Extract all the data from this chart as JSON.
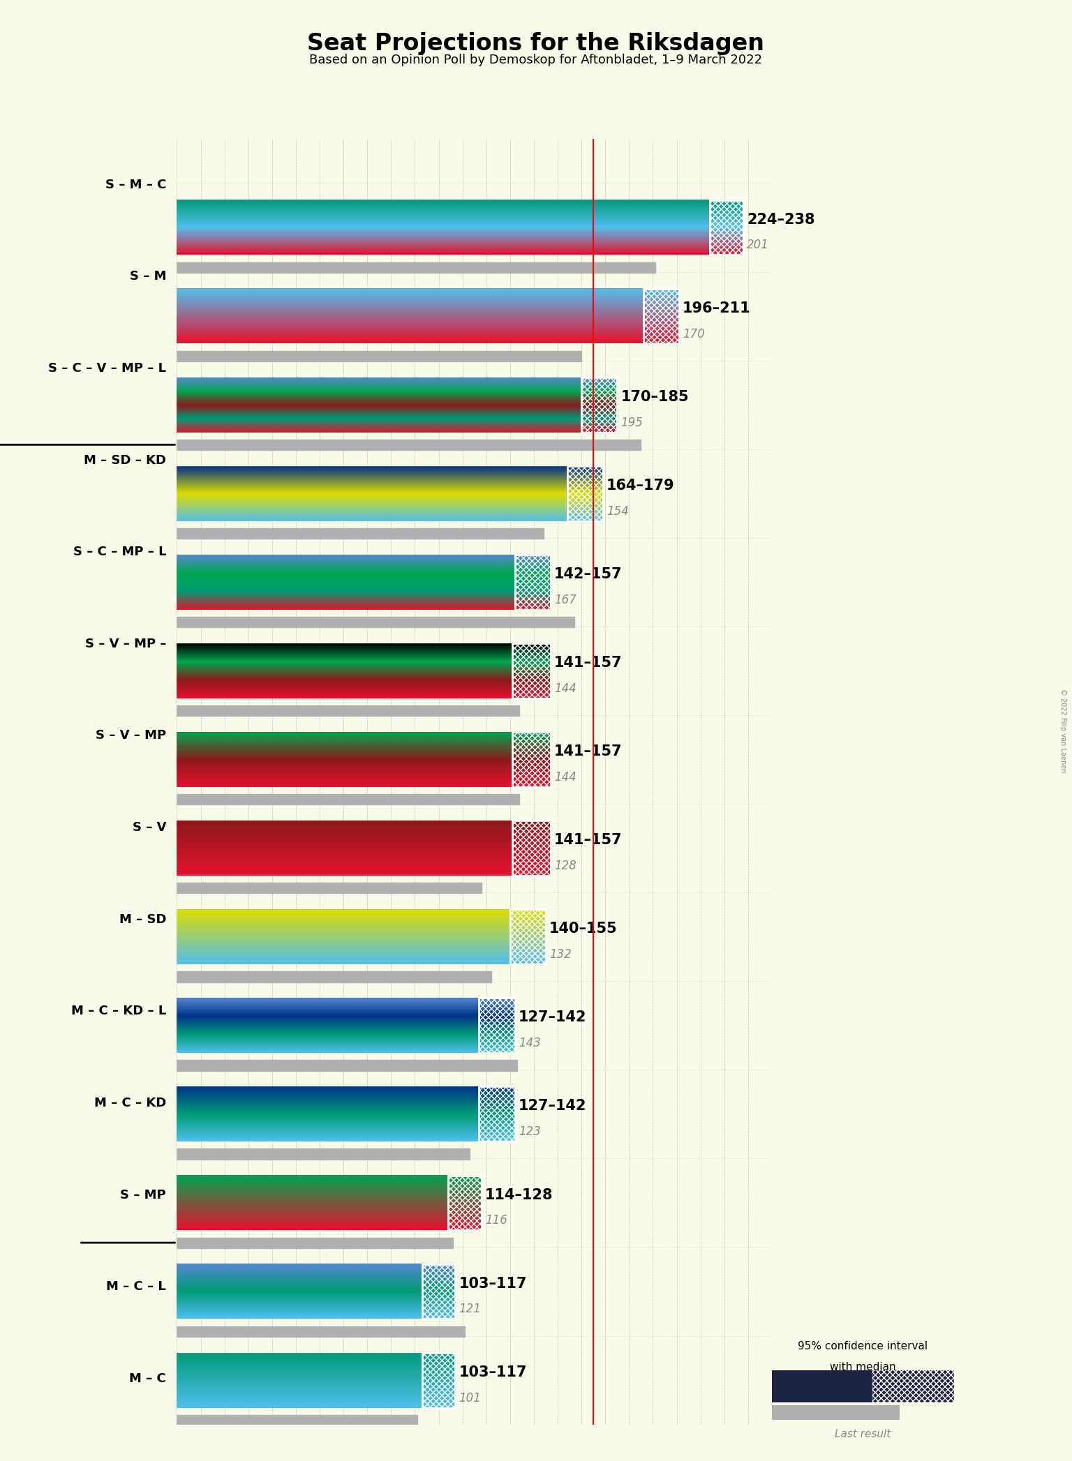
{
  "title": "Seat Projections for the Riksdagen",
  "subtitle": "Based on an Opinion Poll by Demoskop for Aftonbladet, 1–9 March 2022",
  "copyright": "© 2022 Filip van Laenen",
  "majority_line": 175,
  "background_color": "#FAFAE8",
  "coalitions": [
    {
      "label": "S – M – C",
      "underline": false,
      "range_low": 224,
      "range_high": 238,
      "last_result": 201,
      "colors": [
        "#E8112d",
        "#52BFEE",
        "#009B77"
      ]
    },
    {
      "label": "S – M",
      "underline": false,
      "range_low": 196,
      "range_high": 211,
      "last_result": 170,
      "colors": [
        "#E8112d",
        "#52BFEE"
      ]
    },
    {
      "label": "S – C – V – MP – L",
      "underline": true,
      "range_low": 170,
      "range_high": 185,
      "last_result": 195,
      "colors": [
        "#E8112d",
        "#009B77",
        "#8B1A1A",
        "#00A651",
        "#5588CC"
      ]
    },
    {
      "label": "M – SD – KD",
      "underline": false,
      "range_low": 164,
      "range_high": 179,
      "last_result": 154,
      "colors": [
        "#52BFEE",
        "#DDDD00",
        "#003388"
      ]
    },
    {
      "label": "S – C – MP – L",
      "underline": false,
      "range_low": 142,
      "range_high": 157,
      "last_result": 167,
      "colors": [
        "#E8112d",
        "#009B77",
        "#00A651",
        "#5588CC"
      ]
    },
    {
      "label": "S – V – MP –",
      "underline": false,
      "range_low": 141,
      "range_high": 157,
      "last_result": 144,
      "colors": [
        "#E8112d",
        "#8B1A1A",
        "#00A651",
        "#000000"
      ]
    },
    {
      "label": "S – V – MP",
      "underline": false,
      "range_low": 141,
      "range_high": 157,
      "last_result": 144,
      "colors": [
        "#E8112d",
        "#8B1A1A",
        "#00A651"
      ]
    },
    {
      "label": "S – V",
      "underline": false,
      "range_low": 141,
      "range_high": 157,
      "last_result": 128,
      "colors": [
        "#E8112d",
        "#8B1A1A"
      ]
    },
    {
      "label": "M – SD",
      "underline": false,
      "range_low": 140,
      "range_high": 155,
      "last_result": 132,
      "colors": [
        "#52BFEE",
        "#DDDD00"
      ]
    },
    {
      "label": "M – C – KD – L",
      "underline": false,
      "range_low": 127,
      "range_high": 142,
      "last_result": 143,
      "colors": [
        "#52BFEE",
        "#009B77",
        "#003388",
        "#5588CC"
      ]
    },
    {
      "label": "M – C – KD",
      "underline": false,
      "range_low": 127,
      "range_high": 142,
      "last_result": 123,
      "colors": [
        "#52BFEE",
        "#009B77",
        "#003388"
      ]
    },
    {
      "label": "S – MP",
      "underline": true,
      "range_low": 114,
      "range_high": 128,
      "last_result": 116,
      "colors": [
        "#E8112d",
        "#00A651"
      ]
    },
    {
      "label": "M – C – L",
      "underline": false,
      "range_low": 103,
      "range_high": 117,
      "last_result": 121,
      "colors": [
        "#52BFEE",
        "#009B77",
        "#5588CC"
      ]
    },
    {
      "label": "M – C",
      "underline": false,
      "range_low": 103,
      "range_high": 117,
      "last_result": 101,
      "colors": [
        "#52BFEE",
        "#009B77"
      ]
    }
  ]
}
